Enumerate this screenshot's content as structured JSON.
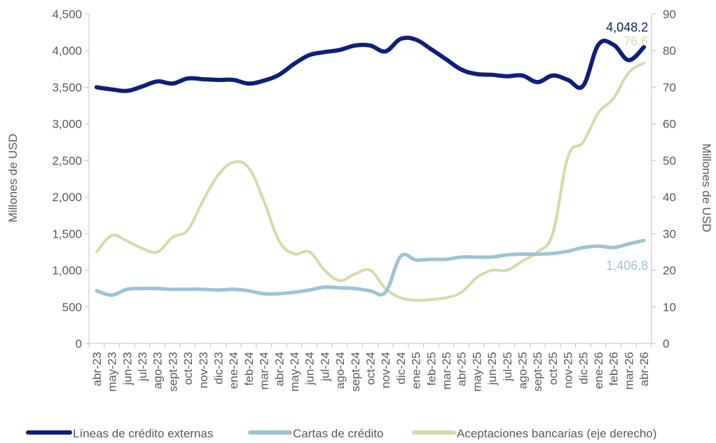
{
  "chart_data": {
    "type": "line",
    "categories": [
      "abr-23",
      "may-23",
      "jun-23",
      "jul-23",
      "ago-23",
      "sept-23",
      "oct-23",
      "nov-23",
      "dic-23",
      "ene-24",
      "feb-24",
      "mar-24",
      "abr-24",
      "may-24",
      "jun-24",
      "jul-24",
      "ago-24",
      "sept-24",
      "oct-24",
      "nov-24",
      "dic-24",
      "ene-25",
      "feb-25",
      "mar-25",
      "abr-25",
      "may-25",
      "jun-25",
      "jul-25",
      "ago-25",
      "sept-25",
      "oct-25",
      "nov-25",
      "dic-25",
      "ene-26",
      "feb-26",
      "mar-26",
      "abr-26"
    ],
    "series": [
      {
        "name": "Líneas de crédito externas",
        "axis": "left",
        "color": "#0d1f7a",
        "values": [
          3500,
          3470,
          3450,
          3510,
          3580,
          3550,
          3620,
          3610,
          3600,
          3600,
          3550,
          3590,
          3670,
          3820,
          3940,
          3980,
          4010,
          4070,
          4070,
          3990,
          4160,
          4150,
          4020,
          3880,
          3740,
          3680,
          3670,
          3650,
          3660,
          3570,
          3660,
          3600,
          3520,
          4080,
          4080,
          3870,
          4048.2
        ],
        "end_label": "4,048.2"
      },
      {
        "name": "Cartas de crédito",
        "axis": "left",
        "color": "#9dc3d4",
        "values": [
          720,
          660,
          740,
          750,
          750,
          740,
          740,
          740,
          730,
          740,
          720,
          680,
          680,
          700,
          730,
          770,
          760,
          750,
          720,
          700,
          1190,
          1140,
          1150,
          1150,
          1180,
          1180,
          1180,
          1210,
          1220,
          1220,
          1230,
          1260,
          1310,
          1330,
          1310,
          1360,
          1406.8
        ],
        "end_label": "1,406.8"
      },
      {
        "name": "Aceptaciones bancarias (eje derecho)",
        "axis": "right",
        "color": "#d5dba7",
        "values": [
          25,
          29.5,
          28,
          26,
          25,
          29,
          31,
          39,
          46,
          49.5,
          48,
          39,
          28,
          24.5,
          25,
          20,
          17.2,
          19,
          20,
          15,
          12.5,
          11.8,
          12,
          12.5,
          14,
          18,
          20,
          20,
          22.5,
          25,
          30,
          51,
          55,
          63,
          67,
          74,
          76.6
        ],
        "end_label": "76.6"
      }
    ],
    "left_axis": {
      "title": "Millones de USD",
      "min": 0,
      "max": 4500,
      "ticks": [
        "0",
        "500",
        "1,000",
        "1,500",
        "2,000",
        "2,500",
        "3,000",
        "3,500",
        "4,000",
        "4,500"
      ]
    },
    "right_axis": {
      "title": "Millones de USD",
      "min": 0,
      "max": 90,
      "ticks": [
        "0",
        "10",
        "20",
        "30",
        "40",
        "50",
        "60",
        "70",
        "80",
        "90"
      ]
    },
    "legend_position": "bottom",
    "grid": false
  }
}
